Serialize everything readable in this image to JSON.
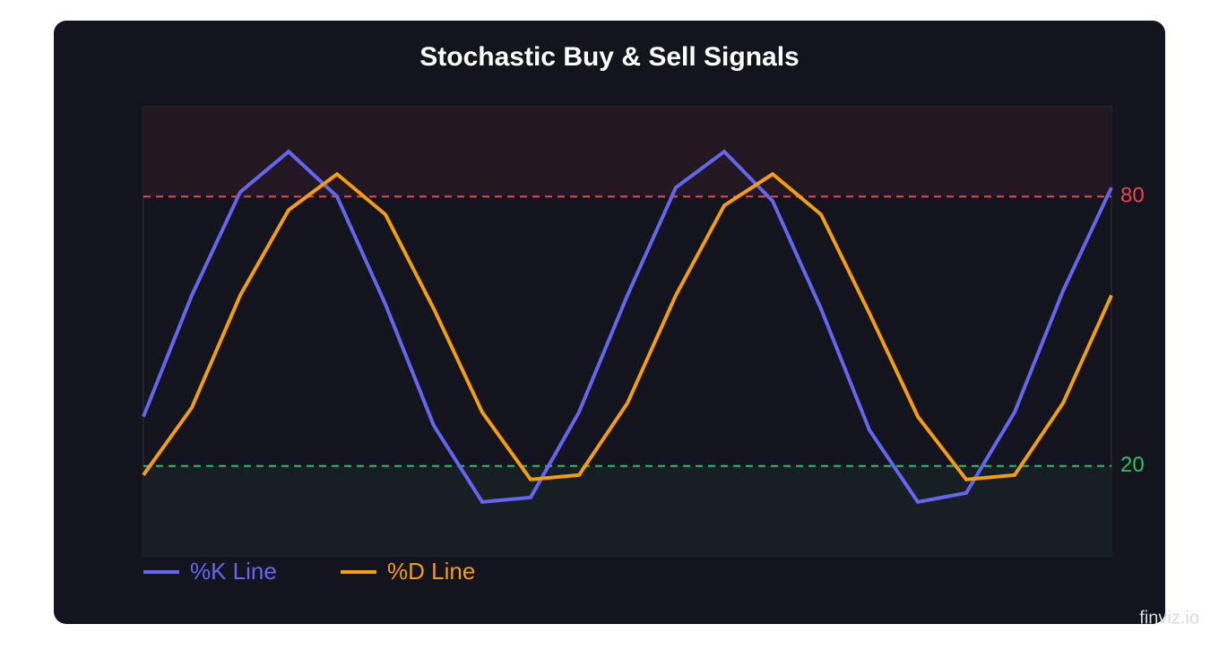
{
  "chart_data": {
    "type": "line",
    "title": "Stochastic Buy & Sell Signals",
    "categories": [
      null,
      null,
      null,
      null,
      null,
      null,
      null,
      null,
      null,
      null,
      null,
      null,
      null,
      null,
      null,
      null,
      null,
      null,
      null,
      null,
      null
    ],
    "series": [
      {
        "name": "%K Line",
        "color": "#6366f1",
        "values": [
          31,
          58,
          81,
          90,
          80,
          56,
          29,
          12,
          13,
          32,
          58,
          82,
          90,
          79,
          55,
          28,
          12,
          14,
          32,
          59,
          82
        ]
      },
      {
        "name": "%D Line",
        "color": "#f59e0b",
        "values": [
          18,
          33,
          58,
          77,
          85,
          76,
          55,
          32,
          17,
          18,
          34,
          58,
          78,
          85,
          76,
          54,
          31,
          17,
          18,
          34,
          58
        ]
      }
    ],
    "ylim": [
      0,
      100
    ],
    "thresholds": [
      {
        "value": 80,
        "color": "#e5484d"
      },
      {
        "value": 20,
        "color": "#22c55e"
      }
    ],
    "legend": "bottom-left",
    "watermark": "finviz.io"
  }
}
